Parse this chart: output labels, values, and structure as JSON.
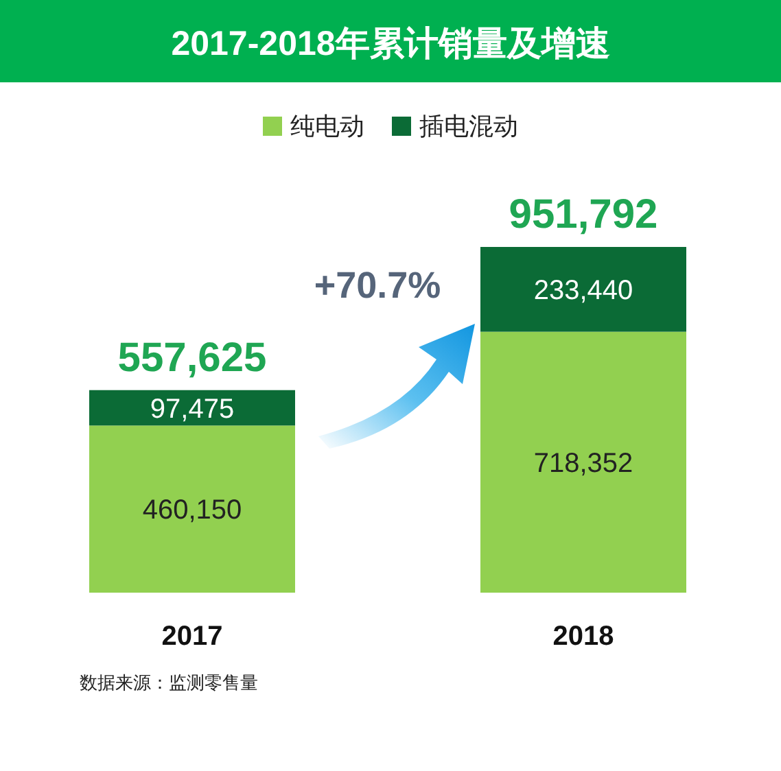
{
  "chart_data": {
    "type": "bar",
    "title": "2017-2018年累计销量及增速",
    "categories": [
      "2017",
      "2018"
    ],
    "stacked": true,
    "legend": "top",
    "series": [
      {
        "name": "纯电动",
        "color": "#92d050",
        "values": [
          460150,
          718352
        ],
        "value_labels": [
          "460,150",
          "718,352"
        ]
      },
      {
        "name": "插电混动",
        "color": "#0b6b36",
        "values": [
          97475,
          233440
        ],
        "value_labels": [
          "97,475",
          "233,440"
        ]
      }
    ],
    "totals": [
      "557,625",
      "951,792"
    ],
    "annotations": [
      "+70.7%",
      "数据来源：监测零售量"
    ]
  }
}
